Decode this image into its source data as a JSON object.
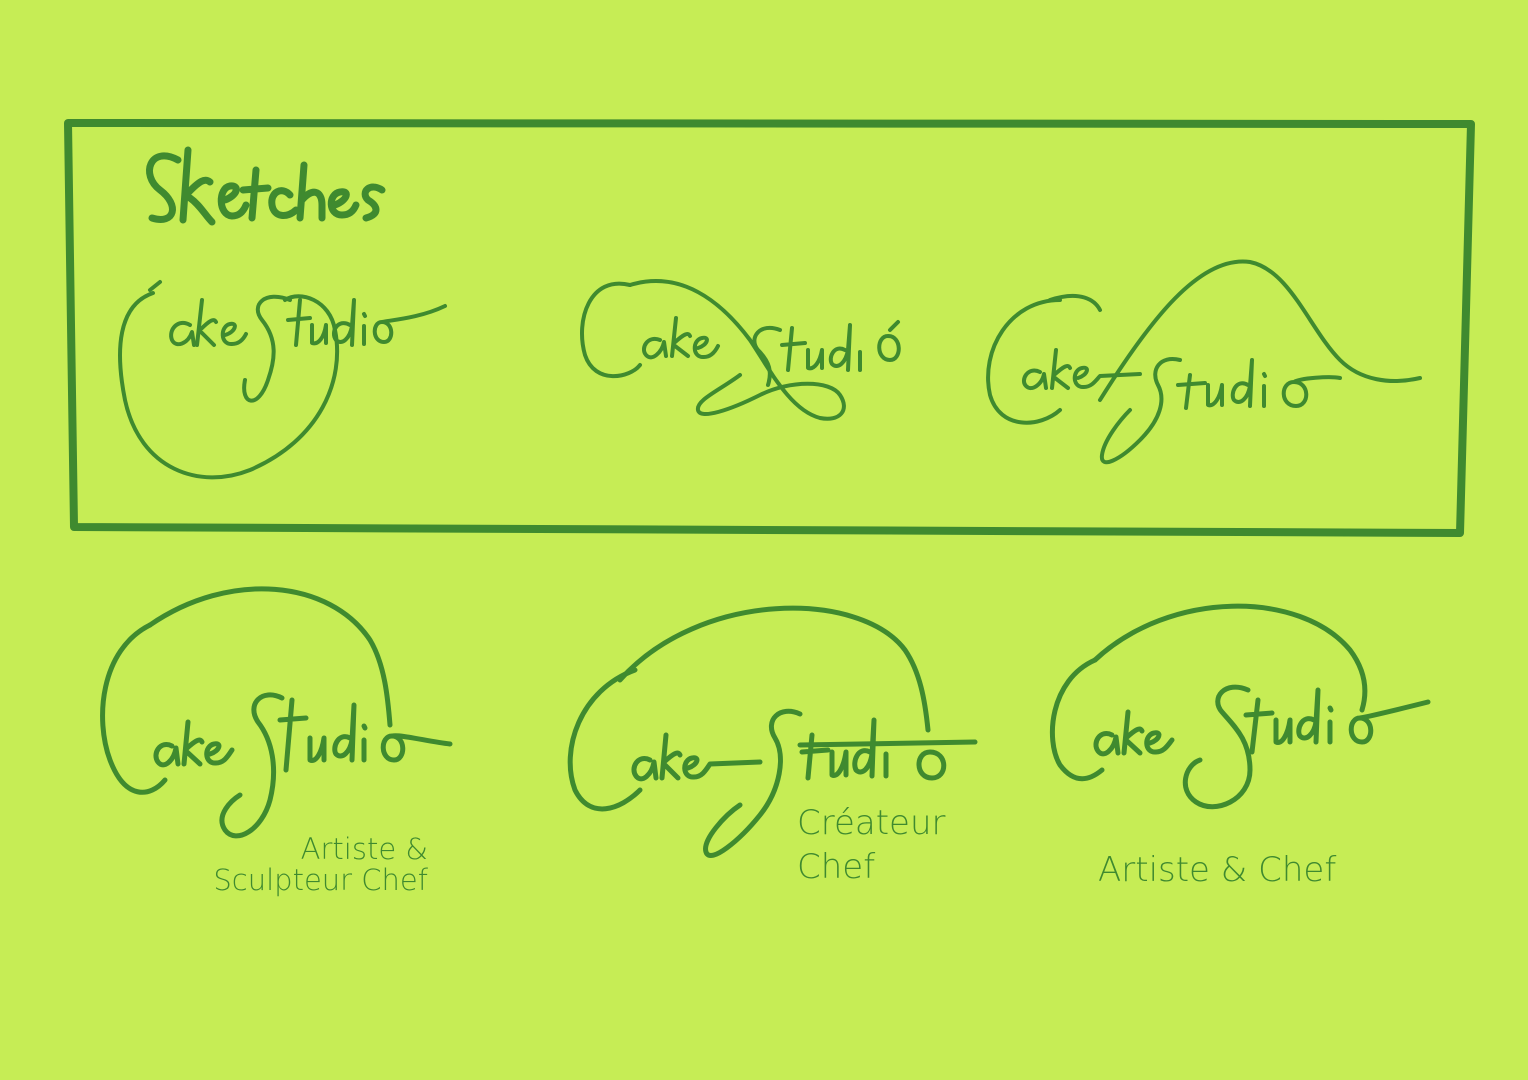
{
  "colors": {
    "background": "#c6ed55",
    "ink": "#3f8a2f",
    "tagline": "#3f8a2f"
  },
  "sketch_frame": {
    "heading": "Sketches",
    "sketches": [
      {
        "wordmark": "CakeStudio"
      },
      {
        "wordmark": "CakeStudió"
      },
      {
        "wordmark": "CakeStudio"
      }
    ]
  },
  "logos": [
    {
      "wordmark": "CakeStudio",
      "tagline_line1": "Artiste &",
      "tagline_line2": "Sculpteur Chef"
    },
    {
      "wordmark": "CakeStudio",
      "tagline_line1": "Créateur",
      "tagline_line2": "Chef"
    },
    {
      "wordmark": "CakeStudio",
      "tagline_line1": "Artiste & Chef"
    }
  ]
}
